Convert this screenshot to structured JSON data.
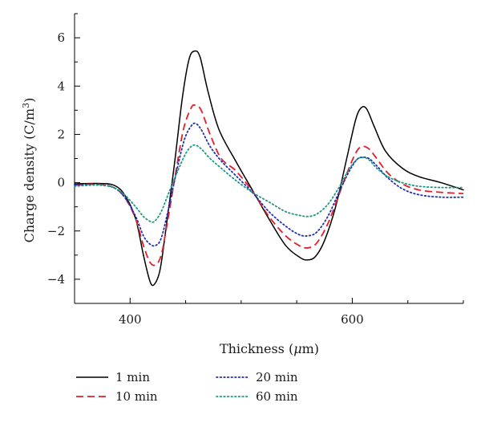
{
  "chart_data": {
    "type": "line",
    "xlabel_main": "Thickness (",
    "xlabel_italic": "μ",
    "xlabel_end": "m)",
    "ylabel_main": "Charge density (C/m",
    "ylabel_sup": "3",
    "ylabel_end": ")",
    "xlim": [
      350,
      700
    ],
    "ylim": [
      -5,
      7
    ],
    "xticks": [
      400,
      600
    ],
    "yticks": [
      -4,
      -2,
      0,
      2,
      4,
      6
    ],
    "grid": false,
    "legend_position": "bottom",
    "series": [
      {
        "name": "1 min",
        "color": "#000000",
        "style": "solid",
        "points": [
          [
            350,
            -0.05
          ],
          [
            370,
            -0.03
          ],
          [
            385,
            -0.1
          ],
          [
            395,
            -0.5
          ],
          [
            405,
            -1.5
          ],
          [
            412,
            -3.0
          ],
          [
            418,
            -4.1
          ],
          [
            422,
            -4.2
          ],
          [
            427,
            -3.6
          ],
          [
            432,
            -2.0
          ],
          [
            440,
            0.8
          ],
          [
            447,
            3.5
          ],
          [
            453,
            5.1
          ],
          [
            458,
            5.45
          ],
          [
            463,
            5.2
          ],
          [
            470,
            3.8
          ],
          [
            480,
            2.2
          ],
          [
            495,
            0.9
          ],
          [
            510,
            -0.3
          ],
          [
            525,
            -1.5
          ],
          [
            540,
            -2.6
          ],
          [
            553,
            -3.1
          ],
          [
            560,
            -3.2
          ],
          [
            567,
            -3.05
          ],
          [
            575,
            -2.4
          ],
          [
            585,
            -1.0
          ],
          [
            595,
            1.0
          ],
          [
            603,
            2.6
          ],
          [
            608,
            3.1
          ],
          [
            613,
            3.05
          ],
          [
            620,
            2.3
          ],
          [
            630,
            1.3
          ],
          [
            645,
            0.6
          ],
          [
            660,
            0.25
          ],
          [
            680,
            0.0
          ],
          [
            700,
            -0.3
          ]
        ]
      },
      {
        "name": "10 min",
        "color": "#e0202a",
        "style": "dashed",
        "points": [
          [
            350,
            -0.1
          ],
          [
            370,
            -0.06
          ],
          [
            385,
            -0.2
          ],
          [
            395,
            -0.6
          ],
          [
            405,
            -1.5
          ],
          [
            412,
            -2.6
          ],
          [
            418,
            -3.3
          ],
          [
            423,
            -3.4
          ],
          [
            428,
            -3.0
          ],
          [
            433,
            -1.8
          ],
          [
            441,
            0.4
          ],
          [
            448,
            2.2
          ],
          [
            455,
            3.1
          ],
          [
            459,
            3.2
          ],
          [
            464,
            3.0
          ],
          [
            472,
            2.0
          ],
          [
            482,
            1.0
          ],
          [
            495,
            0.5
          ],
          [
            510,
            -0.35
          ],
          [
            525,
            -1.4
          ],
          [
            540,
            -2.2
          ],
          [
            552,
            -2.6
          ],
          [
            560,
            -2.7
          ],
          [
            568,
            -2.5
          ],
          [
            578,
            -1.7
          ],
          [
            588,
            -0.5
          ],
          [
            597,
            0.6
          ],
          [
            604,
            1.3
          ],
          [
            609,
            1.5
          ],
          [
            615,
            1.4
          ],
          [
            622,
            1.0
          ],
          [
            632,
            0.4
          ],
          [
            645,
            -0.05
          ],
          [
            660,
            -0.3
          ],
          [
            680,
            -0.4
          ],
          [
            700,
            -0.45
          ]
        ]
      },
      {
        "name": "20 min",
        "color": "#1f2fb8",
        "style": "dotted",
        "points": [
          [
            350,
            -0.1
          ],
          [
            370,
            -0.08
          ],
          [
            385,
            -0.2
          ],
          [
            395,
            -0.6
          ],
          [
            405,
            -1.4
          ],
          [
            412,
            -2.2
          ],
          [
            418,
            -2.55
          ],
          [
            423,
            -2.6
          ],
          [
            428,
            -2.3
          ],
          [
            434,
            -1.2
          ],
          [
            442,
            0.5
          ],
          [
            449,
            1.8
          ],
          [
            455,
            2.35
          ],
          [
            459,
            2.45
          ],
          [
            464,
            2.2
          ],
          [
            472,
            1.5
          ],
          [
            482,
            0.9
          ],
          [
            495,
            0.3
          ],
          [
            510,
            -0.4
          ],
          [
            525,
            -1.2
          ],
          [
            540,
            -1.8
          ],
          [
            552,
            -2.15
          ],
          [
            560,
            -2.2
          ],
          [
            568,
            -2.05
          ],
          [
            578,
            -1.4
          ],
          [
            588,
            -0.4
          ],
          [
            597,
            0.45
          ],
          [
            604,
            0.95
          ],
          [
            609,
            1.05
          ],
          [
            615,
            1.0
          ],
          [
            622,
            0.7
          ],
          [
            632,
            0.2
          ],
          [
            645,
            -0.25
          ],
          [
            660,
            -0.5
          ],
          [
            680,
            -0.6
          ],
          [
            700,
            -0.6
          ]
        ]
      },
      {
        "name": "60 min",
        "color": "#1a9a82",
        "style": "dotted",
        "points": [
          [
            350,
            -0.15
          ],
          [
            370,
            -0.1
          ],
          [
            385,
            -0.2
          ],
          [
            395,
            -0.5
          ],
          [
            405,
            -1.0
          ],
          [
            412,
            -1.4
          ],
          [
            418,
            -1.6
          ],
          [
            422,
            -1.6
          ],
          [
            428,
            -1.2
          ],
          [
            435,
            -0.4
          ],
          [
            443,
            0.5
          ],
          [
            450,
            1.2
          ],
          [
            455,
            1.5
          ],
          [
            459,
            1.55
          ],
          [
            464,
            1.4
          ],
          [
            472,
            1.0
          ],
          [
            482,
            0.6
          ],
          [
            495,
            0.1
          ],
          [
            510,
            -0.4
          ],
          [
            525,
            -0.8
          ],
          [
            540,
            -1.2
          ],
          [
            552,
            -1.35
          ],
          [
            560,
            -1.4
          ],
          [
            568,
            -1.3
          ],
          [
            578,
            -0.9
          ],
          [
            588,
            -0.2
          ],
          [
            597,
            0.55
          ],
          [
            604,
            0.95
          ],
          [
            609,
            1.05
          ],
          [
            615,
            0.95
          ],
          [
            622,
            0.6
          ],
          [
            632,
            0.25
          ],
          [
            645,
            0.0
          ],
          [
            660,
            -0.15
          ],
          [
            680,
            -0.2
          ],
          [
            700,
            -0.2
          ]
        ]
      }
    ]
  }
}
